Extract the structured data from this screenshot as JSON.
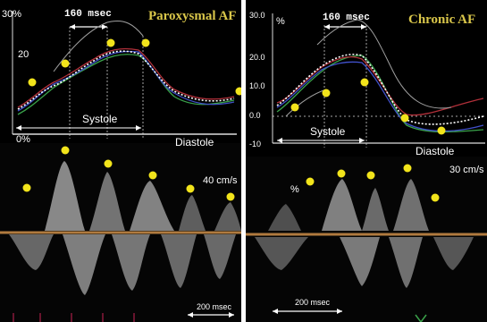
{
  "left_panel": {
    "title": "Paroxysmal AF",
    "top_interval": "160 msec",
    "y_top": "30%",
    "y_mid": "20",
    "y_bottom": "0%",
    "phase_systole": "Systole",
    "phase_diastole": "Diastole",
    "velocity_scale": "40 cm/s",
    "time_scale": "200 msec"
  },
  "right_panel": {
    "title": "Chronic AF",
    "top_interval": "160 msec",
    "y_ticks": [
      "30.0",
      "20.0",
      "10.0",
      "0.0",
      "-10"
    ],
    "corner_symbol": "%",
    "phase_systole": "Systole",
    "phase_diastole": "Diastole",
    "velocity_scale": "30 cm/s",
    "time_scale": "200 msec"
  },
  "colors": {
    "marker": "#f2e41b",
    "title": "#d9c64a",
    "baseline": "#b07a3e",
    "curve_white": "#ffffff",
    "curve_green": "#3aa24a",
    "curve_red": "#b2303a",
    "curve_blue": "#4050c8",
    "curve_gray": "#a0a0a0"
  }
}
